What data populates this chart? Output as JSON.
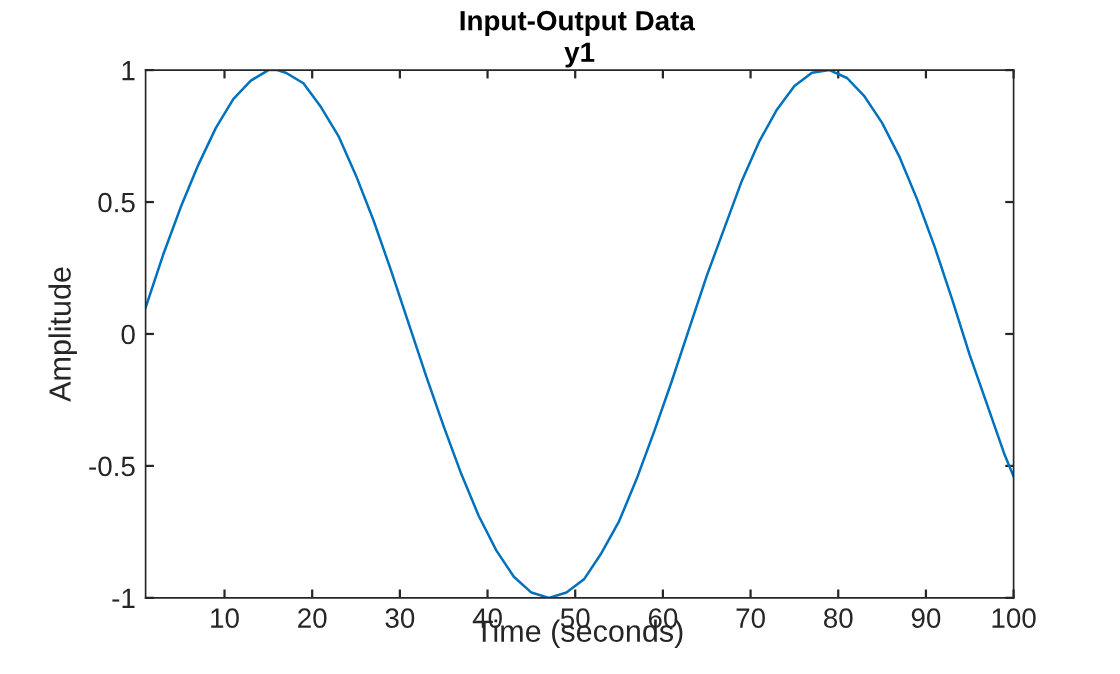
{
  "chart_data": {
    "type": "line",
    "title": "Input-Output Data",
    "subtitle": "y1",
    "xlabel": "Time (seconds)",
    "ylabel": "Amplitude",
    "x": [
      1,
      3,
      5,
      7,
      9,
      11,
      13,
      15,
      16,
      17,
      19,
      21,
      23,
      25,
      27,
      29,
      31,
      33,
      35,
      37,
      39,
      41,
      43,
      45,
      47,
      49,
      51,
      53,
      55,
      57,
      59,
      61,
      63,
      65,
      67,
      69,
      71,
      73,
      75,
      77,
      79,
      81,
      83,
      85,
      87,
      89,
      91,
      93,
      95,
      97,
      99,
      100
    ],
    "series": [
      {
        "color": "#0072bd",
        "values": [
          0.1,
          0.3,
          0.48,
          0.64,
          0.78,
          0.89,
          0.96,
          1.0,
          1.0,
          0.99,
          0.95,
          0.86,
          0.75,
          0.6,
          0.43,
          0.24,
          0.04,
          -0.16,
          -0.35,
          -0.53,
          -0.69,
          -0.82,
          -0.92,
          -0.98,
          -1.0,
          -0.98,
          -0.93,
          -0.83,
          -0.71,
          -0.55,
          -0.37,
          -0.18,
          0.02,
          0.22,
          0.4,
          0.58,
          0.73,
          0.85,
          0.94,
          0.99,
          1.0,
          0.97,
          0.9,
          0.8,
          0.67,
          0.51,
          0.33,
          0.13,
          -0.08,
          -0.27,
          -0.46,
          -0.54
        ]
      }
    ],
    "xlim": [
      1,
      100
    ],
    "xticks": [
      10,
      20,
      30,
      40,
      50,
      60,
      70,
      80,
      90,
      100
    ],
    "ylim": [
      -1,
      1
    ],
    "yticks": [
      {
        "value": -1,
        "label": "-1"
      },
      {
        "value": -0.5,
        "label": "-0.5"
      },
      0,
      0.5,
      1
    ],
    "grid": false,
    "legend": false,
    "marker": "none",
    "line_style": "solid"
  }
}
